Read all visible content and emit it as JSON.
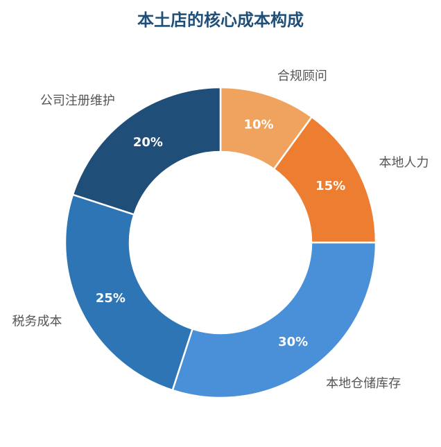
{
  "chart_data": {
    "type": "donut",
    "title": "本土店的核心成本构成",
    "categories": [
      "合规顾问",
      "本地人力",
      "本地仓储库存",
      "税务成本",
      "公司注册维护"
    ],
    "values": [
      10,
      15,
      30,
      25,
      20
    ],
    "value_labels": [
      "10%",
      "15%",
      "30%",
      "25%",
      "20%"
    ],
    "colors": [
      "#f0a35e",
      "#ed7d31",
      "#4a90d9",
      "#2e75b6",
      "#1f4e79"
    ]
  }
}
